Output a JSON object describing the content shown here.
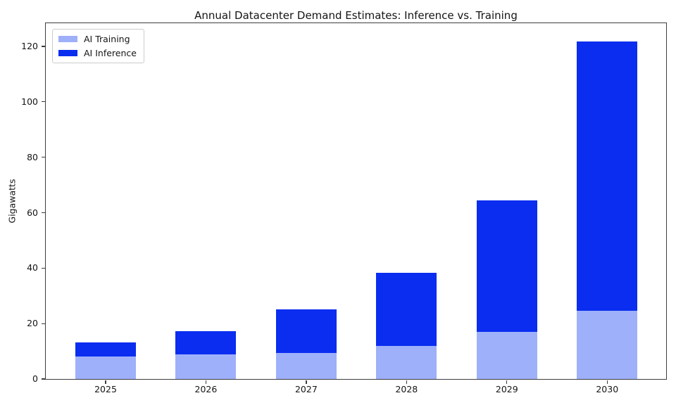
{
  "chart_data": {
    "type": "bar",
    "stacked": true,
    "title": "Annual Datacenter Demand Estimates: Inference vs. Training",
    "xlabel": "",
    "ylabel": "Gigawatts",
    "categories": [
      "2025",
      "2026",
      "2027",
      "2028",
      "2029",
      "2030"
    ],
    "series": [
      {
        "name": "AI Training",
        "color": "#9eb0fa",
        "values": [
          8,
          9,
          9.5,
          12,
          17,
          24.5
        ]
      },
      {
        "name": "AI Inference",
        "color": "#0a2df0",
        "values": [
          5.3,
          8.3,
          15.5,
          26.3,
          47.5,
          97.3
        ]
      }
    ],
    "totals": [
      13.3,
      17.3,
      25.0,
      38.3,
      64.5,
      121.8
    ],
    "yticks": [
      0,
      20,
      40,
      60,
      80,
      100,
      120
    ],
    "ylim": [
      0,
      128.6
    ],
    "grid": false,
    "legend_position": "upper left"
  }
}
